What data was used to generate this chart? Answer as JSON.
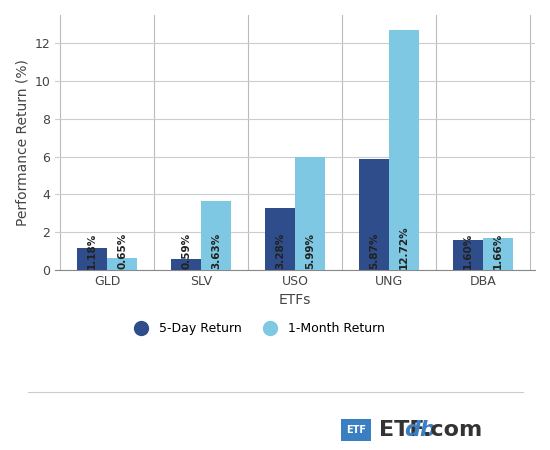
{
  "categories": [
    "GLD",
    "SLV",
    "USO",
    "UNG",
    "DBA"
  ],
  "five_day": [
    1.18,
    0.59,
    3.28,
    5.87,
    1.6
  ],
  "one_month": [
    0.65,
    3.63,
    5.99,
    12.72,
    1.66
  ],
  "five_day_labels": [
    "1.18%",
    "0.59%",
    "3.28%",
    "5.87%",
    "1.60%"
  ],
  "one_month_labels": [
    "0.65%",
    "3.63%",
    "5.99%",
    "12.72%",
    "1.66%"
  ],
  "color_5day": "#2e4d8a",
  "color_1month": "#7ec8e3",
  "xlabel": "ETFs",
  "ylabel": "Performance Return (%)",
  "legend_5day": "5-Day Return",
  "legend_1month": "1-Month Return",
  "ylim": [
    0,
    13.5
  ],
  "yticks": [
    0,
    2,
    4,
    6,
    8,
    10,
    12
  ],
  "bar_width": 0.32,
  "background_color": "#ffffff",
  "grid_color": "#cccccc",
  "label_fontsize": 7.5,
  "axis_fontsize": 10,
  "tick_fontsize": 9,
  "legend_fontsize": 9,
  "label_threshold": 0.8
}
